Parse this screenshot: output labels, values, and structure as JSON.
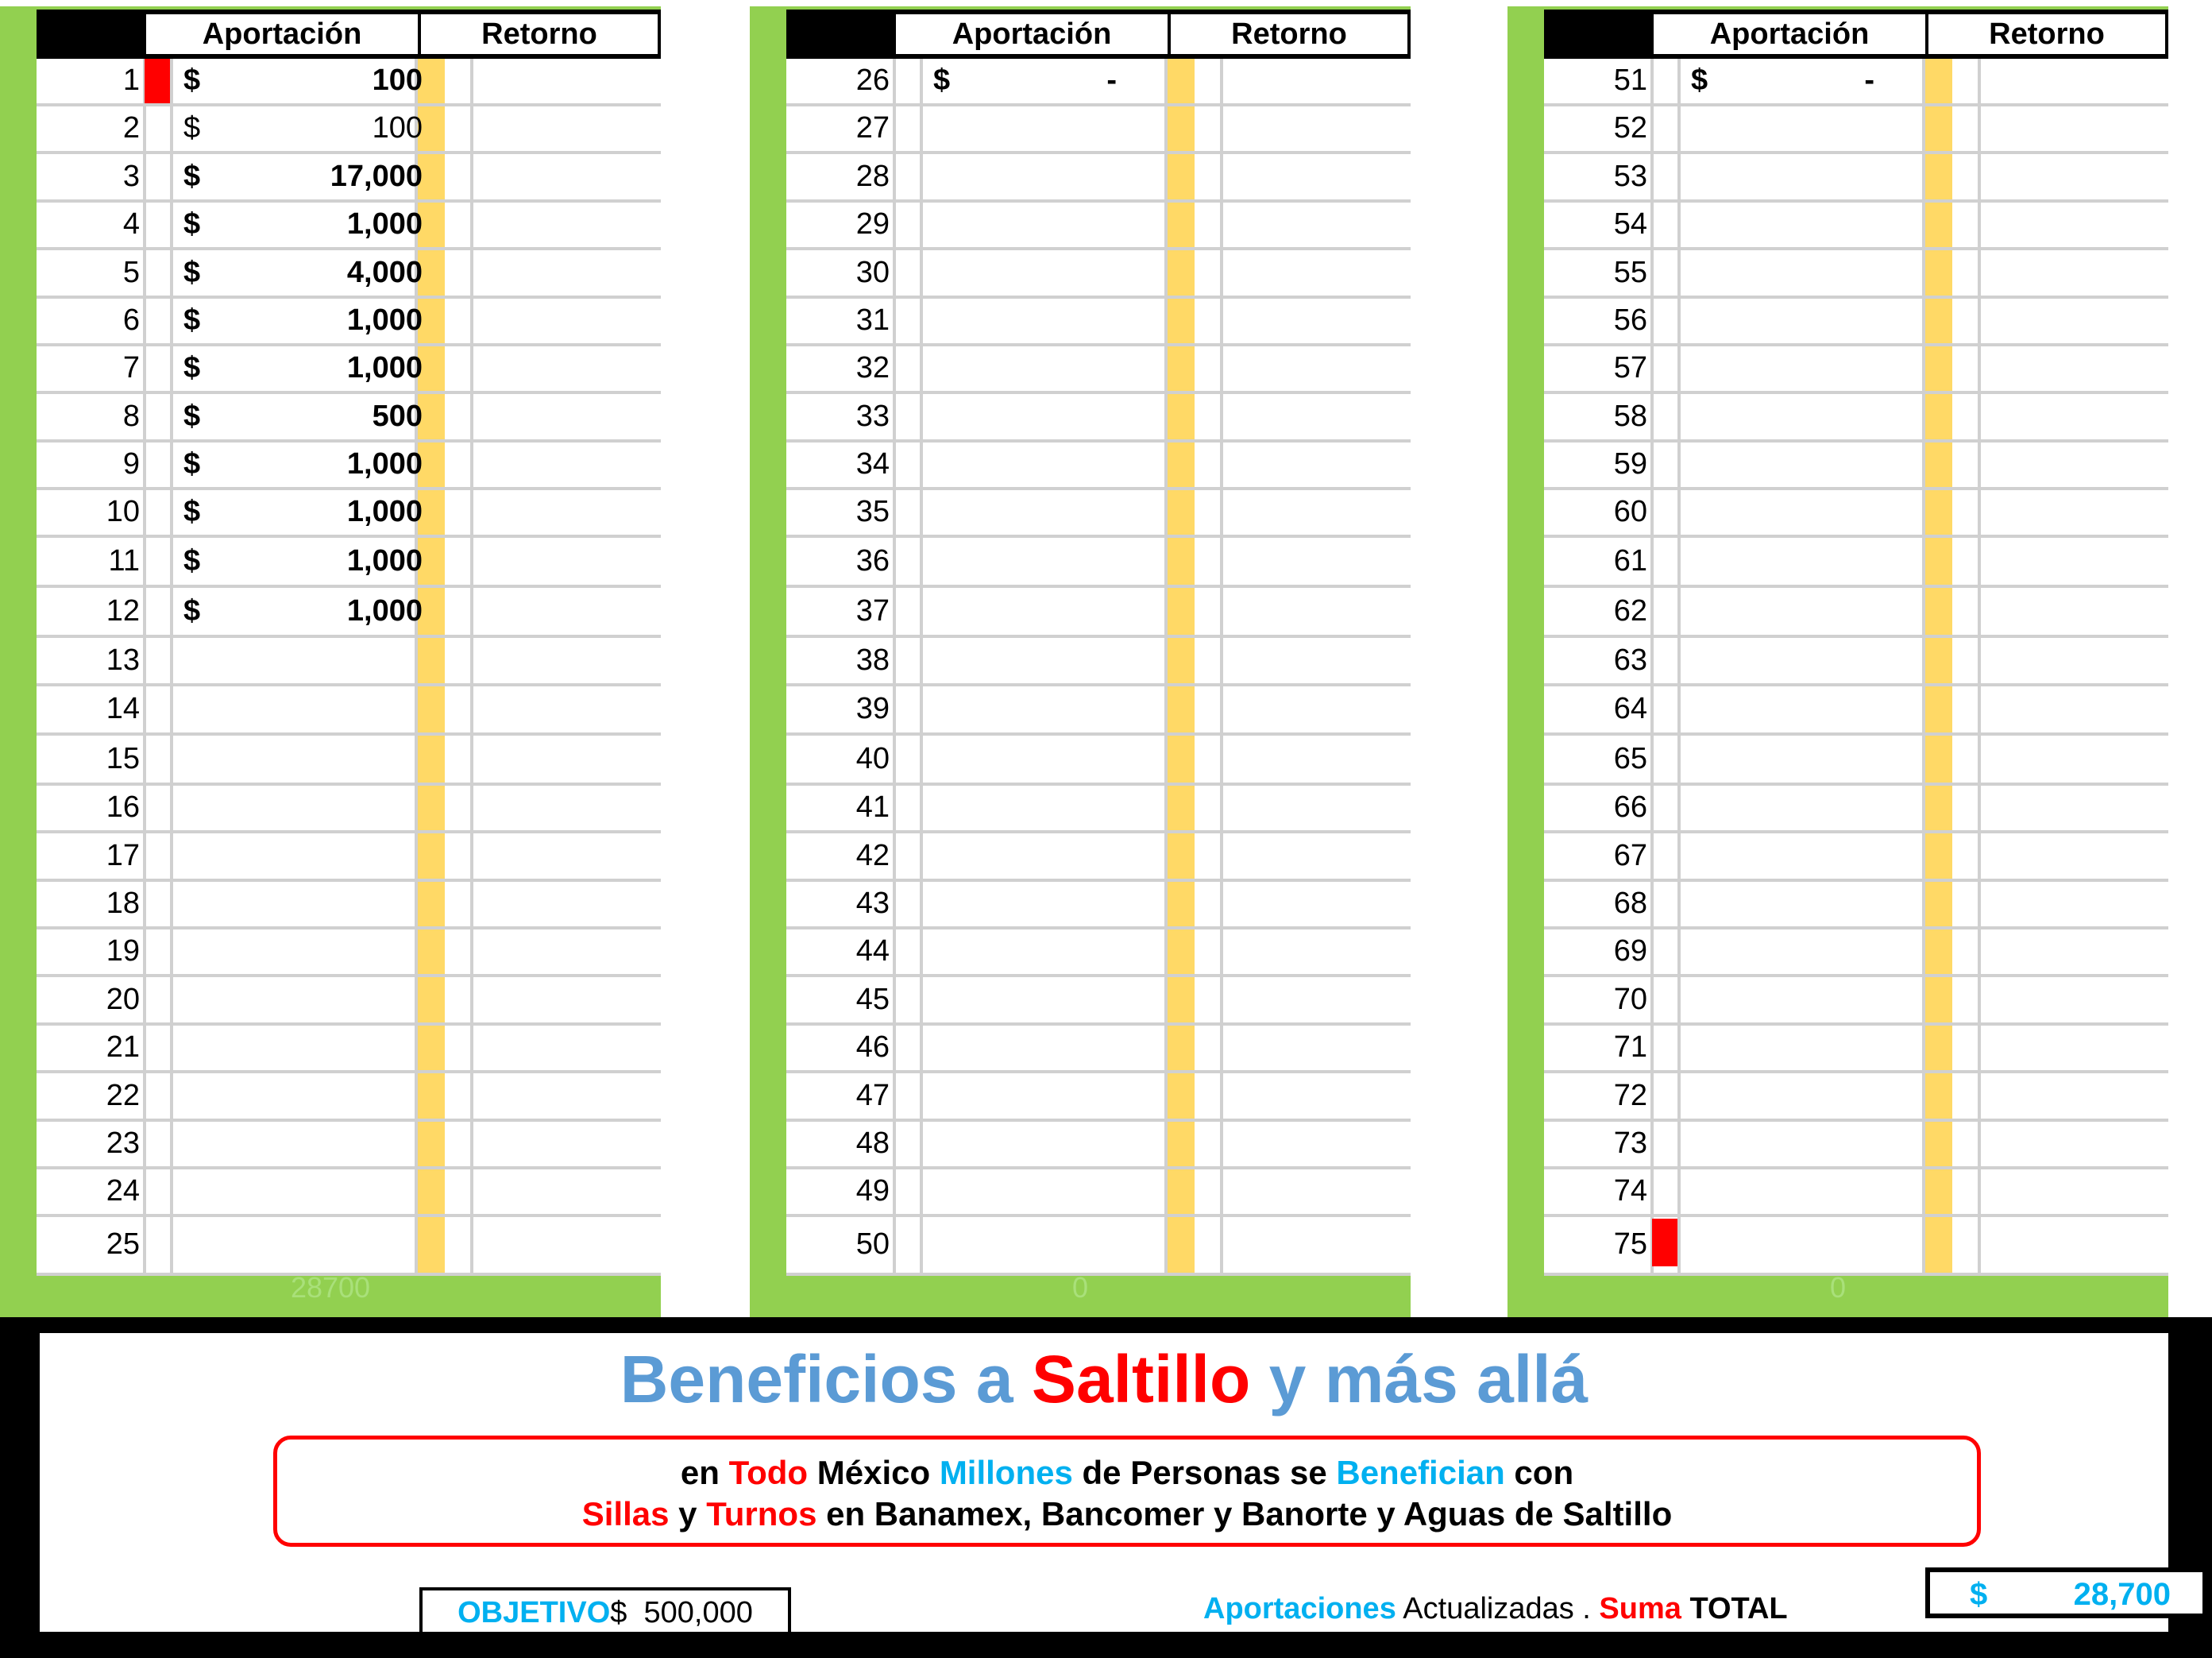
{
  "headers": {
    "aportacion": "Aportación",
    "retorno": "Retorno"
  },
  "panels": [
    {
      "sum": "28700",
      "rows": [
        {
          "n": "1",
          "cur": "$",
          "amt": "100",
          "bold": true
        },
        {
          "n": "2",
          "cur": "$",
          "amt": "100",
          "bold": false
        },
        {
          "n": "3",
          "cur": "$",
          "amt": "17,000",
          "bold": true
        },
        {
          "n": "4",
          "cur": "$",
          "amt": "1,000",
          "bold": true
        },
        {
          "n": "5",
          "cur": "$",
          "amt": "4,000",
          "bold": true
        },
        {
          "n": "6",
          "cur": "$",
          "amt": "1,000",
          "bold": true
        },
        {
          "n": "7",
          "cur": "$",
          "amt": "1,000",
          "bold": true
        },
        {
          "n": "8",
          "cur": "$",
          "amt": "500",
          "bold": true
        },
        {
          "n": "9",
          "cur": "$",
          "amt": "1,000",
          "bold": true
        },
        {
          "n": "10",
          "cur": "$",
          "amt": "1,000",
          "bold": true
        },
        {
          "n": "11",
          "cur": "$",
          "amt": "1,000",
          "bold": true
        },
        {
          "n": "12",
          "cur": "$",
          "amt": "1,000",
          "bold": true
        },
        {
          "n": "13"
        },
        {
          "n": "14"
        },
        {
          "n": "15"
        },
        {
          "n": "16"
        },
        {
          "n": "17"
        },
        {
          "n": "18"
        },
        {
          "n": "19"
        },
        {
          "n": "20"
        },
        {
          "n": "21"
        },
        {
          "n": "22"
        },
        {
          "n": "23"
        },
        {
          "n": "24"
        },
        {
          "n": "25"
        }
      ]
    },
    {
      "sum": "0",
      "rows": [
        {
          "n": "26",
          "cur": "$",
          "amt": "-",
          "bold": true
        },
        {
          "n": "27"
        },
        {
          "n": "28"
        },
        {
          "n": "29"
        },
        {
          "n": "30"
        },
        {
          "n": "31"
        },
        {
          "n": "32"
        },
        {
          "n": "33"
        },
        {
          "n": "34"
        },
        {
          "n": "35"
        },
        {
          "n": "36"
        },
        {
          "n": "37"
        },
        {
          "n": "38"
        },
        {
          "n": "39"
        },
        {
          "n": "40"
        },
        {
          "n": "41"
        },
        {
          "n": "42"
        },
        {
          "n": "43"
        },
        {
          "n": "44"
        },
        {
          "n": "45"
        },
        {
          "n": "46"
        },
        {
          "n": "47"
        },
        {
          "n": "48"
        },
        {
          "n": "49"
        },
        {
          "n": "50"
        }
      ]
    },
    {
      "sum": "0",
      "rows": [
        {
          "n": "51",
          "cur": "$",
          "amt": "-",
          "bold": true
        },
        {
          "n": "52"
        },
        {
          "n": "53"
        },
        {
          "n": "54"
        },
        {
          "n": "55"
        },
        {
          "n": "56"
        },
        {
          "n": "57"
        },
        {
          "n": "58"
        },
        {
          "n": "59"
        },
        {
          "n": "60"
        },
        {
          "n": "61"
        },
        {
          "n": "62"
        },
        {
          "n": "63"
        },
        {
          "n": "64"
        },
        {
          "n": "65"
        },
        {
          "n": "66"
        },
        {
          "n": "67"
        },
        {
          "n": "68"
        },
        {
          "n": "69"
        },
        {
          "n": "70"
        },
        {
          "n": "71"
        },
        {
          "n": "72"
        },
        {
          "n": "73"
        },
        {
          "n": "74"
        },
        {
          "n": "75"
        }
      ]
    }
  ],
  "banner": {
    "title_a": "Beneficios a ",
    "title_b": "Saltillo",
    "title_c": " y más allá",
    "line1": [
      {
        "t": "en ",
        "c": "k"
      },
      {
        "t": "Todo",
        "c": "r"
      },
      {
        "t": " México ",
        "c": "k"
      },
      {
        "t": "Millones",
        "c": "b"
      },
      {
        "t": " de Personas se ",
        "c": "k"
      },
      {
        "t": "Benefician",
        "c": "b"
      },
      {
        "t": " con",
        "c": "k"
      }
    ],
    "line2": [
      {
        "t": "Sillas",
        "c": "r"
      },
      {
        "t": " y ",
        "c": "k"
      },
      {
        "t": "Turnos",
        "c": "r"
      },
      {
        "t": " en Banamex, Bancomer y Banorte y Aguas de Saltillo",
        "c": "k"
      }
    ],
    "objetivo_label": "OBJETIVO",
    "objetivo_value": "$  500,000",
    "aport_a": "Aportaciones",
    "aport_b": " Actualizadas . ",
    "aport_c": "Suma",
    "aport_d": " TOTAL",
    "total_cur": "$",
    "total_value": "28,700"
  },
  "colors": {
    "panel_green": "#92d050",
    "retorno_yellow": "#ffd966",
    "marker_red": "#ff0000",
    "accent_blue": "#00b0f0",
    "title_blue": "#5b9bd5"
  }
}
